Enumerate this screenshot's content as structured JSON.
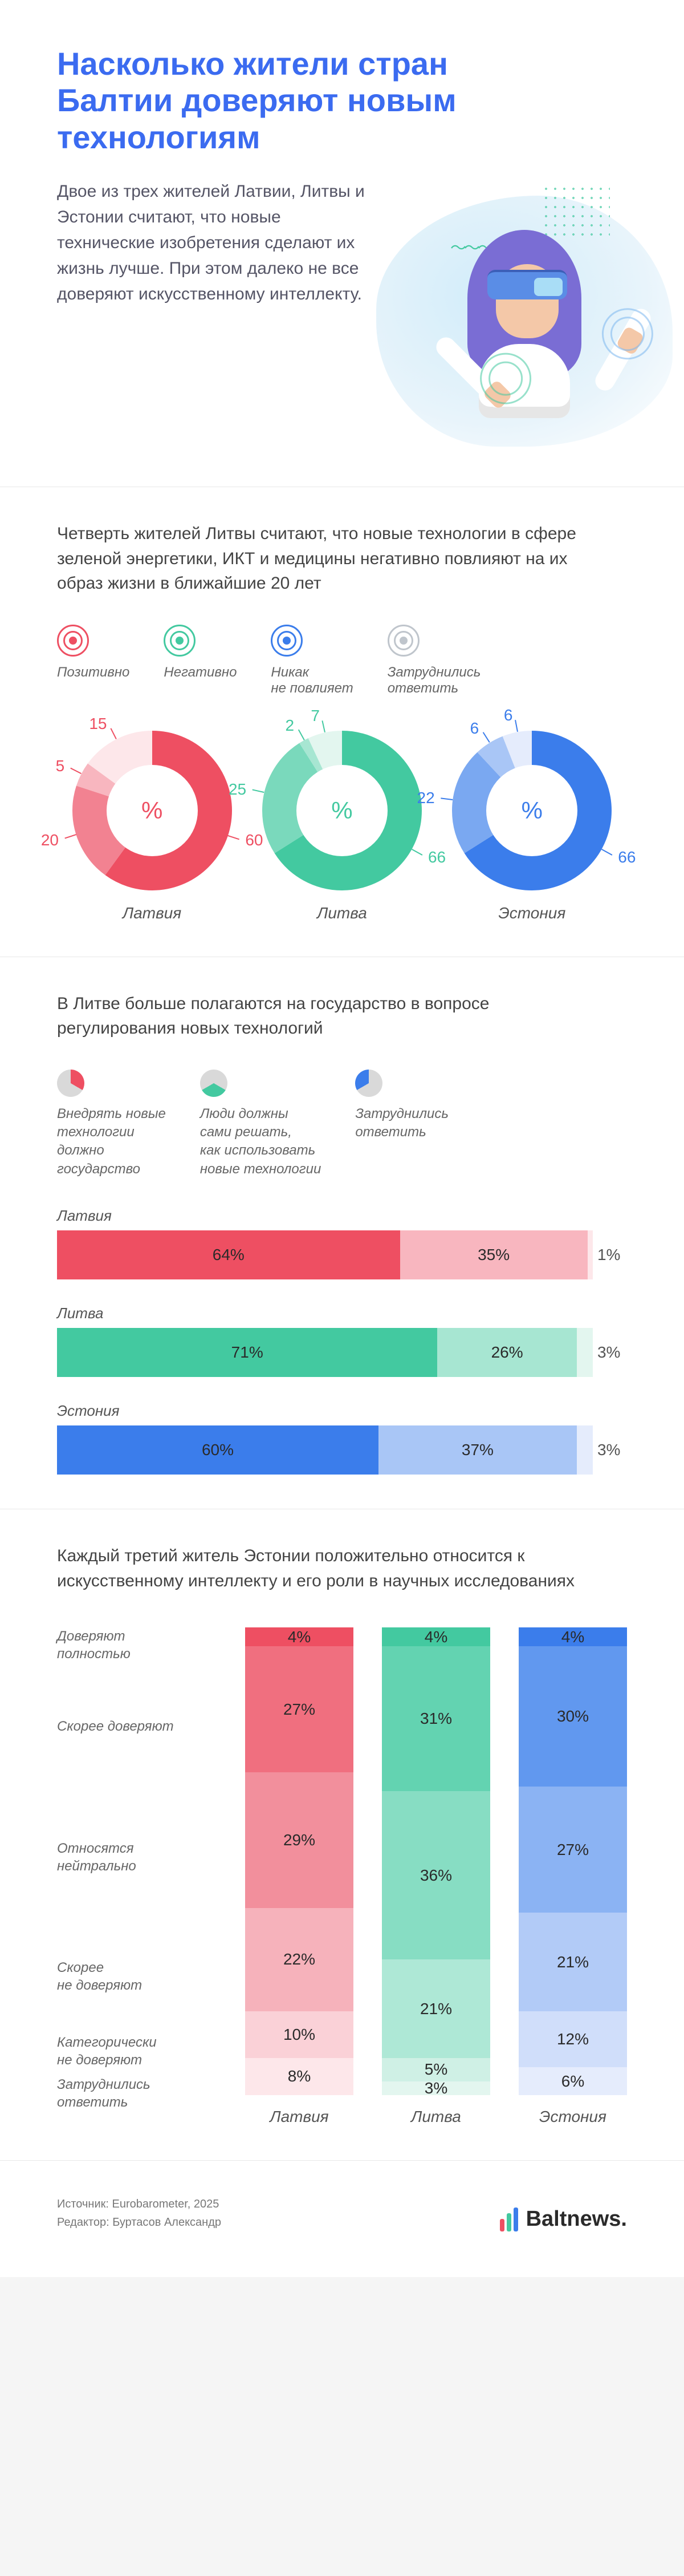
{
  "colors": {
    "accent_blue": "#3b6bf0",
    "red": "#ee4f62",
    "red_mid": "#f28291",
    "red_light": "#f8b6bf",
    "red_pale": "#fbd8dd",
    "red_faint": "#fde7ea",
    "green": "#43c9a0",
    "green_mid": "#7ad9bc",
    "green_light": "#a7e6d2",
    "green_pale": "#cff0e5",
    "green_faint": "#e3f6ef",
    "blue": "#3b7deb",
    "blue_mid": "#7aa8f1",
    "blue_light": "#a9c6f6",
    "blue_pale": "#d0defa",
    "blue_faint": "#e5ecfc",
    "text": "#444",
    "dim": "#777"
  },
  "hero": {
    "title": "Насколько жители стран Балтии доверяют новым технологиям",
    "lead": "Двое из трех жителей Латвии, Литвы и Эстонии считают, что новые технические изобретения сделают их жизнь лучше. При этом далеко не все доверяют искусственному интеллекту."
  },
  "section1": {
    "title": "Четверть жителей Литвы считают, что новые технологии в сфере зеленой энергетики, ИКТ и медицины негативно повлияют на их образ жизни в ближайшие 20 лет",
    "legend": [
      {
        "label": "Позитивно",
        "color": "#ee4f62"
      },
      {
        "label": "Негативно",
        "color": "#43c9a0"
      },
      {
        "label": "Никак\nне повлияет",
        "color": "#3b7deb"
      },
      {
        "label": "Затруднились\nответить",
        "color": "#bfc5cc"
      }
    ],
    "donuts": [
      {
        "country": "Латвия",
        "colors": [
          "#ee4f62",
          "#f28291",
          "#f8b6bf",
          "#fde7ea"
        ],
        "label_color": "#ee4f62",
        "slices": [
          60,
          20,
          5,
          15
        ],
        "labels": [
          "60",
          "20",
          "5",
          "15"
        ]
      },
      {
        "country": "Литва",
        "colors": [
          "#43c9a0",
          "#7ad9bc",
          "#a7e6d2",
          "#e3f6ef"
        ],
        "label_color": "#43c9a0",
        "slices": [
          66,
          25,
          2,
          7
        ],
        "labels": [
          "66",
          "25",
          "2",
          "7"
        ]
      },
      {
        "country": "Эстония",
        "colors": [
          "#3b7deb",
          "#7aa8f1",
          "#a9c6f6",
          "#e5ecfc"
        ],
        "label_color": "#3b7deb",
        "slices": [
          66,
          22,
          6,
          6
        ],
        "labels": [
          "66",
          "22",
          "6",
          "6"
        ]
      }
    ],
    "center_symbol": "%"
  },
  "section2": {
    "title": "В Литве больше полагаются на государство в вопросе регулирования новых технологий",
    "legend": [
      {
        "label": "Внедрять новые\nтехнологии\nдолжно\nгосударство",
        "highlight_idx": 0
      },
      {
        "label": "Люди должны\nсами решать,\nкак использовать\nновые технологии",
        "highlight_idx": 1
      },
      {
        "label": "Затруднились\nответить",
        "highlight_idx": 2
      }
    ],
    "pie_colors": [
      "#ee4f62",
      "#43c9a0",
      "#3b7deb"
    ],
    "pie_dim": "#d9d9d9",
    "bars": [
      {
        "country": "Латвия",
        "segs": [
          {
            "v": 64,
            "label": "64%",
            "color": "#ee4f62"
          },
          {
            "v": 35,
            "label": "35%",
            "color": "#f8b6bf"
          },
          {
            "v": 1,
            "label": "1%",
            "color": "#fde7ea",
            "out": true
          }
        ]
      },
      {
        "country": "Литва",
        "segs": [
          {
            "v": 71,
            "label": "71%",
            "color": "#43c9a0"
          },
          {
            "v": 26,
            "label": "26%",
            "color": "#a7e6d2"
          },
          {
            "v": 3,
            "label": "3%",
            "color": "#e3f6ef",
            "out": true
          }
        ]
      },
      {
        "country": "Эстония",
        "segs": [
          {
            "v": 60,
            "label": "60%",
            "color": "#3b7deb"
          },
          {
            "v": 37,
            "label": "37%",
            "color": "#a9c6f6"
          },
          {
            "v": 3,
            "label": "3%",
            "color": "#e5ecfc",
            "out": true
          }
        ]
      }
    ]
  },
  "section3": {
    "title": "Каждый третий житель Эстонии положительно относится к искусственному интеллекту и его роли в научных исследованиях",
    "rows": [
      {
        "label": "Доверяют\nполностью"
      },
      {
        "label": "Скорее доверяют"
      },
      {
        "label": "Относятся\nнейтрально"
      },
      {
        "label": "Скорее\nне доверяют"
      },
      {
        "label": "Категорически\nне доверяют"
      },
      {
        "label": "Затруднились\nответить"
      }
    ],
    "cols": [
      {
        "country": "Латвия",
        "segs": [
          {
            "v": 4,
            "label": "4%",
            "color": "#ee4f62"
          },
          {
            "v": 27,
            "label": "27%",
            "color": "#f06f7f"
          },
          {
            "v": 29,
            "label": "29%",
            "color": "#f28f9c"
          },
          {
            "v": 22,
            "label": "22%",
            "color": "#f6b2bb"
          },
          {
            "v": 10,
            "label": "10%",
            "color": "#fad1d7"
          },
          {
            "v": 8,
            "label": "8%",
            "color": "#fde7ea"
          }
        ]
      },
      {
        "country": "Литва",
        "segs": [
          {
            "v": 4,
            "label": "4%",
            "color": "#43c9a0"
          },
          {
            "v": 31,
            "label": "31%",
            "color": "#63d3b1"
          },
          {
            "v": 36,
            "label": "36%",
            "color": "#87ddc3"
          },
          {
            "v": 21,
            "label": "21%",
            "color": "#aee8d6"
          },
          {
            "v": 5,
            "label": "5%",
            "color": "#cff0e5"
          },
          {
            "v": 3,
            "label": "3%",
            "color": "#e3f6ef"
          }
        ]
      },
      {
        "country": "Эстония",
        "segs": [
          {
            "v": 4,
            "label": "4%",
            "color": "#3b7deb"
          },
          {
            "v": 30,
            "label": "30%",
            "color": "#6198ef"
          },
          {
            "v": 27,
            "label": "27%",
            "color": "#8bb3f3"
          },
          {
            "v": 21,
            "label": "21%",
            "color": "#b2cbf7"
          },
          {
            "v": 12,
            "label": "12%",
            "color": "#d0defa"
          },
          {
            "v": 6,
            "label": "6%",
            "color": "#e5ecfc"
          }
        ]
      }
    ]
  },
  "footer": {
    "source": "Источник: Eurobarometer, 2025",
    "editor": "Редактор: Буртасов Александр",
    "brand": "Baltnews.",
    "bars": [
      {
        "color": "#ee4f62",
        "h": 22
      },
      {
        "color": "#43c9a0",
        "h": 32
      },
      {
        "color": "#3b7deb",
        "h": 42
      }
    ]
  }
}
